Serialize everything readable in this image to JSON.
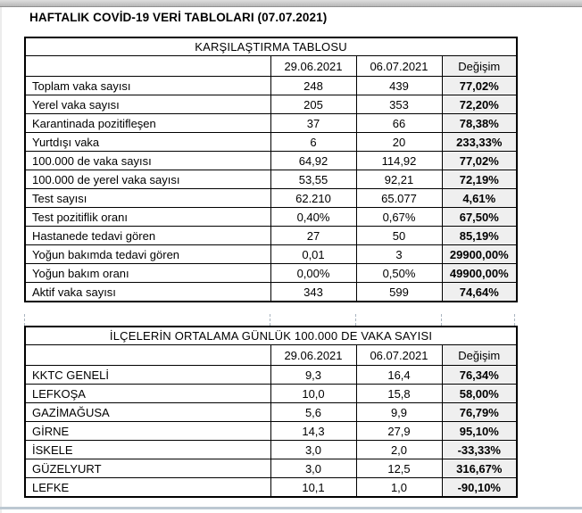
{
  "page": {
    "title": "HAFTALIK COVİD-19 VERİ TABLOLARI (07.07.2021)"
  },
  "colors": {
    "change_column_bg": "#efefef",
    "table_border": "#000000",
    "top_bar": "#c9c9c9",
    "bottom_rule": "#bcc8d2",
    "page_break_dash": "#a9b4bf"
  },
  "tables": [
    {
      "title": "KARŞILAŞTIRMA TABLOSU",
      "columns": [
        "",
        "29.06.2021",
        "06.07.2021",
        "Değişim"
      ],
      "rows": [
        {
          "label": "Toplam vaka sayısı",
          "v1": "248",
          "v2": "439",
          "change": "77,02%"
        },
        {
          "label": "Yerel vaka sayısı",
          "v1": "205",
          "v2": "353",
          "change": "72,20%"
        },
        {
          "label": "Karantinada pozitifleşen",
          "v1": "37",
          "v2": "66",
          "change": "78,38%"
        },
        {
          "label": "Yurtdışı vaka",
          "v1": "6",
          "v2": "20",
          "change": "233,33%"
        },
        {
          "label": "100.000 de vaka sayısı",
          "v1": "64,92",
          "v2": "114,92",
          "change": "77,02%"
        },
        {
          "label": "100.000 de yerel vaka sayısı",
          "v1": "53,55",
          "v2": "92,21",
          "change": "72,19%"
        },
        {
          "label": "Test sayısı",
          "v1": "62.210",
          "v2": "65.077",
          "change": "4,61%"
        },
        {
          "label": "Test pozitiflik oranı",
          "v1": "0,40%",
          "v2": "0,67%",
          "change": "67,50%"
        },
        {
          "label": "Hastanede tedavi gören",
          "v1": "27",
          "v2": "50",
          "change": "85,19%"
        },
        {
          "label": "Yoğun bakımda tedavi gören",
          "v1": "0,01",
          "v2": "3",
          "change": "29900,00%"
        },
        {
          "label": "Yoğun bakım oranı",
          "v1": "0,00%",
          "v2": "0,50%",
          "change": "49900,00%"
        },
        {
          "label": "Aktif vaka sayısı",
          "v1": "343",
          "v2": "599",
          "change": "74,64%"
        }
      ]
    },
    {
      "title": "İLÇELERİN ORTALAMA GÜNLÜK 100.000 DE VAKA SAYISI",
      "columns": [
        "",
        "29.06.2021",
        "06.07.2021",
        "Değişim"
      ],
      "rows": [
        {
          "label": "KKTC GENELİ",
          "v1": "9,3",
          "v2": "16,4",
          "change": "76,34%"
        },
        {
          "label": "LEFKOŞA",
          "v1": "10,0",
          "v2": "15,8",
          "change": "58,00%"
        },
        {
          "label": "GAZİMAĞUSA",
          "v1": "5,6",
          "v2": "9,9",
          "change": "76,79%"
        },
        {
          "label": "GİRNE",
          "v1": "14,3",
          "v2": "27,9",
          "change": "95,10%"
        },
        {
          "label": "İSKELE",
          "v1": "3,0",
          "v2": "2,0",
          "change": "-33,33%"
        },
        {
          "label": "GÜZELYURT",
          "v1": "3,0",
          "v2": "12,5",
          "change": "316,67%"
        },
        {
          "label": "LEFKE",
          "v1": "10,1",
          "v2": "1,0",
          "change": "-90,10%"
        }
      ]
    }
  ]
}
